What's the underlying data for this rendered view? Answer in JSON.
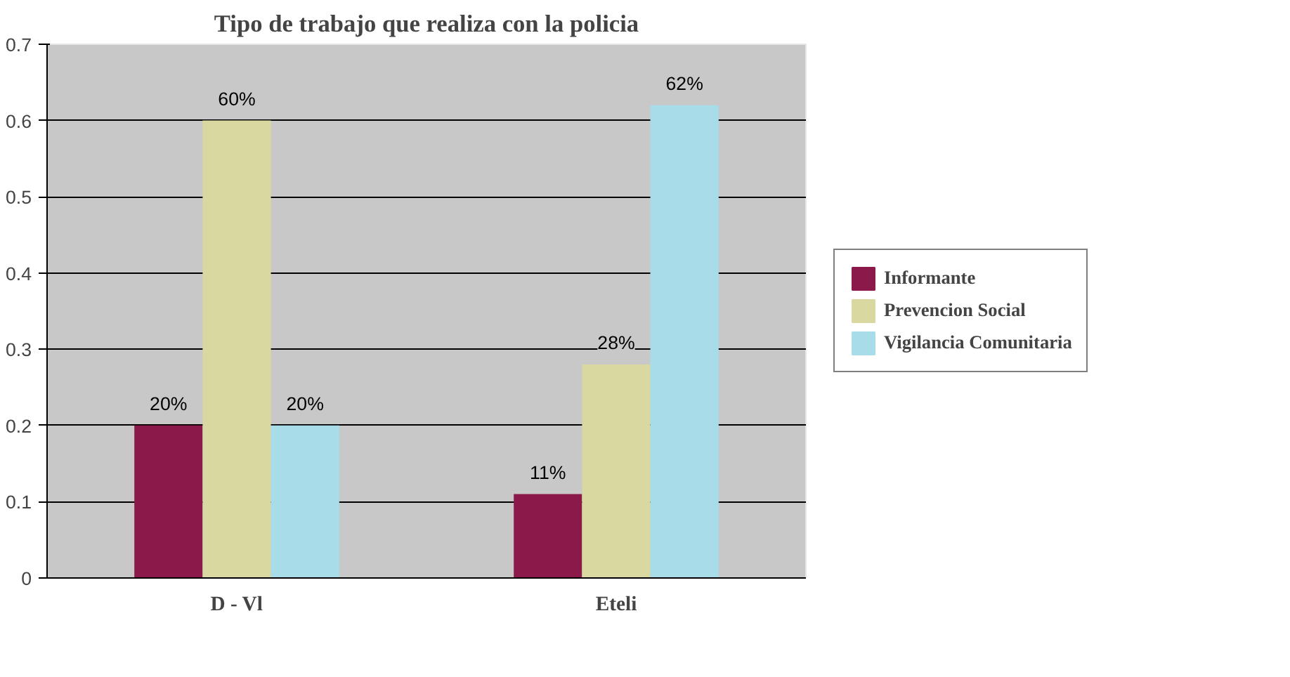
{
  "chart_data": {
    "type": "bar",
    "title": "Tipo de trabajo que realiza con la policia",
    "categories": [
      "D - Vl",
      "Eteli"
    ],
    "series": [
      {
        "name": "Informante",
        "color": "#8b1a4a",
        "values": [
          0.2,
          0.11
        ],
        "value_labels": [
          "20%",
          "11%"
        ]
      },
      {
        "name": "Prevencion Social",
        "color": "#d8d8a0",
        "values": [
          0.6,
          0.28
        ],
        "value_labels": [
          "60%",
          "28%"
        ]
      },
      {
        "name": "Vigilancia Comunitaria",
        "color": "#a8dce8",
        "values": [
          0.2,
          0.62
        ],
        "value_labels": [
          "20%",
          "62%"
        ]
      }
    ],
    "ylim": [
      0,
      0.7
    ],
    "yticks": [
      0,
      0.1,
      0.2,
      0.3,
      0.4,
      0.5,
      0.6,
      0.7
    ],
    "grid": "y",
    "legend": "right"
  }
}
